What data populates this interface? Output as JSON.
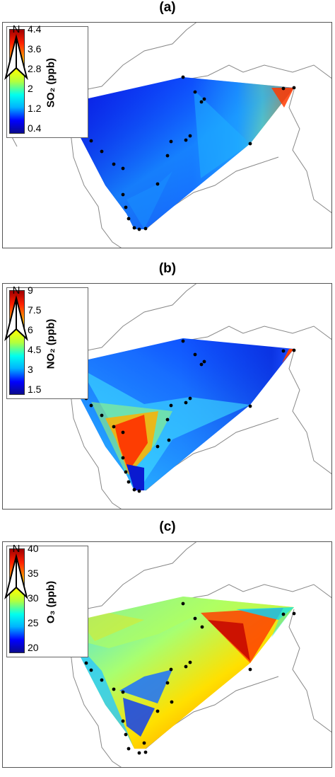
{
  "panels": [
    {
      "label": "(a)",
      "pollutant": "SO₂",
      "unit_label": "SO₂ (ppb)",
      "ticks": [
        "4.4",
        "3.6",
        "2.8",
        "2",
        "1.2",
        "0.4"
      ],
      "scale_min": 0.4,
      "scale_max": 4.4
    },
    {
      "label": "(b)",
      "pollutant": "NO₂",
      "unit_label": "NO₂ (ppb)",
      "ticks": [
        "9",
        "7.5",
        "6",
        "4.5",
        "3",
        "1.5"
      ],
      "scale_min": 1.5,
      "scale_max": 9
    },
    {
      "label": "(c)",
      "pollutant": "O₃",
      "unit_label": "O₃ (ppb)",
      "ticks": [
        "40",
        "35",
        "30",
        "25",
        "20"
      ],
      "scale_min": 20,
      "scale_max": 40
    }
  ],
  "north_arrow_label": "N",
  "colormap": [
    "#0a0a8c",
    "#0000ff",
    "#00b4ff",
    "#00ffee",
    "#b4ff3c",
    "#ffff00",
    "#ff8c00",
    "#ff2000",
    "#a00000"
  ],
  "station_marker_color": "#000000",
  "icons": {
    "north_arrow": "north-arrow-icon",
    "station": "station-marker"
  }
}
